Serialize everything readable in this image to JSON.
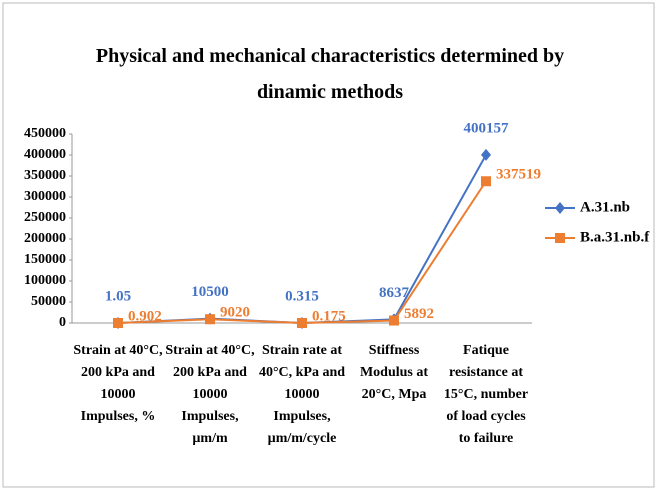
{
  "chart_data": {
    "type": "line",
    "title": "Physical and mechanical characteristics  determined by dinamic methods",
    "categories": [
      "Strain at 40°C, 200 kPa and 10000 Impulses, %",
      "Strain at 40°C, 200 kPa and 10000 Impulses, µm/m",
      "Strain rate at 40°C, kPa and 10000 Impulses, µm/m/cycle",
      "Stiffness Modulus at 20°C, Mpa",
      "Fatique resistance at 15°C, number of load cycles to failure"
    ],
    "series": [
      {
        "name": "A.31.nb",
        "color": "#4472c4",
        "marker": "diamond",
        "values": [
          1.05,
          10500,
          0.315,
          8637,
          400157
        ]
      },
      {
        "name": "B.a.31.nb.f",
        "color": "#ed7d31",
        "marker": "square",
        "values": [
          0.902,
          9020,
          0.175,
          5892,
          337519
        ]
      }
    ],
    "ylim": [
      0,
      450000
    ],
    "yticks": [
      0,
      50000,
      100000,
      150000,
      200000,
      250000,
      300000,
      350000,
      400000,
      450000
    ],
    "grid": false,
    "legend": "right"
  }
}
